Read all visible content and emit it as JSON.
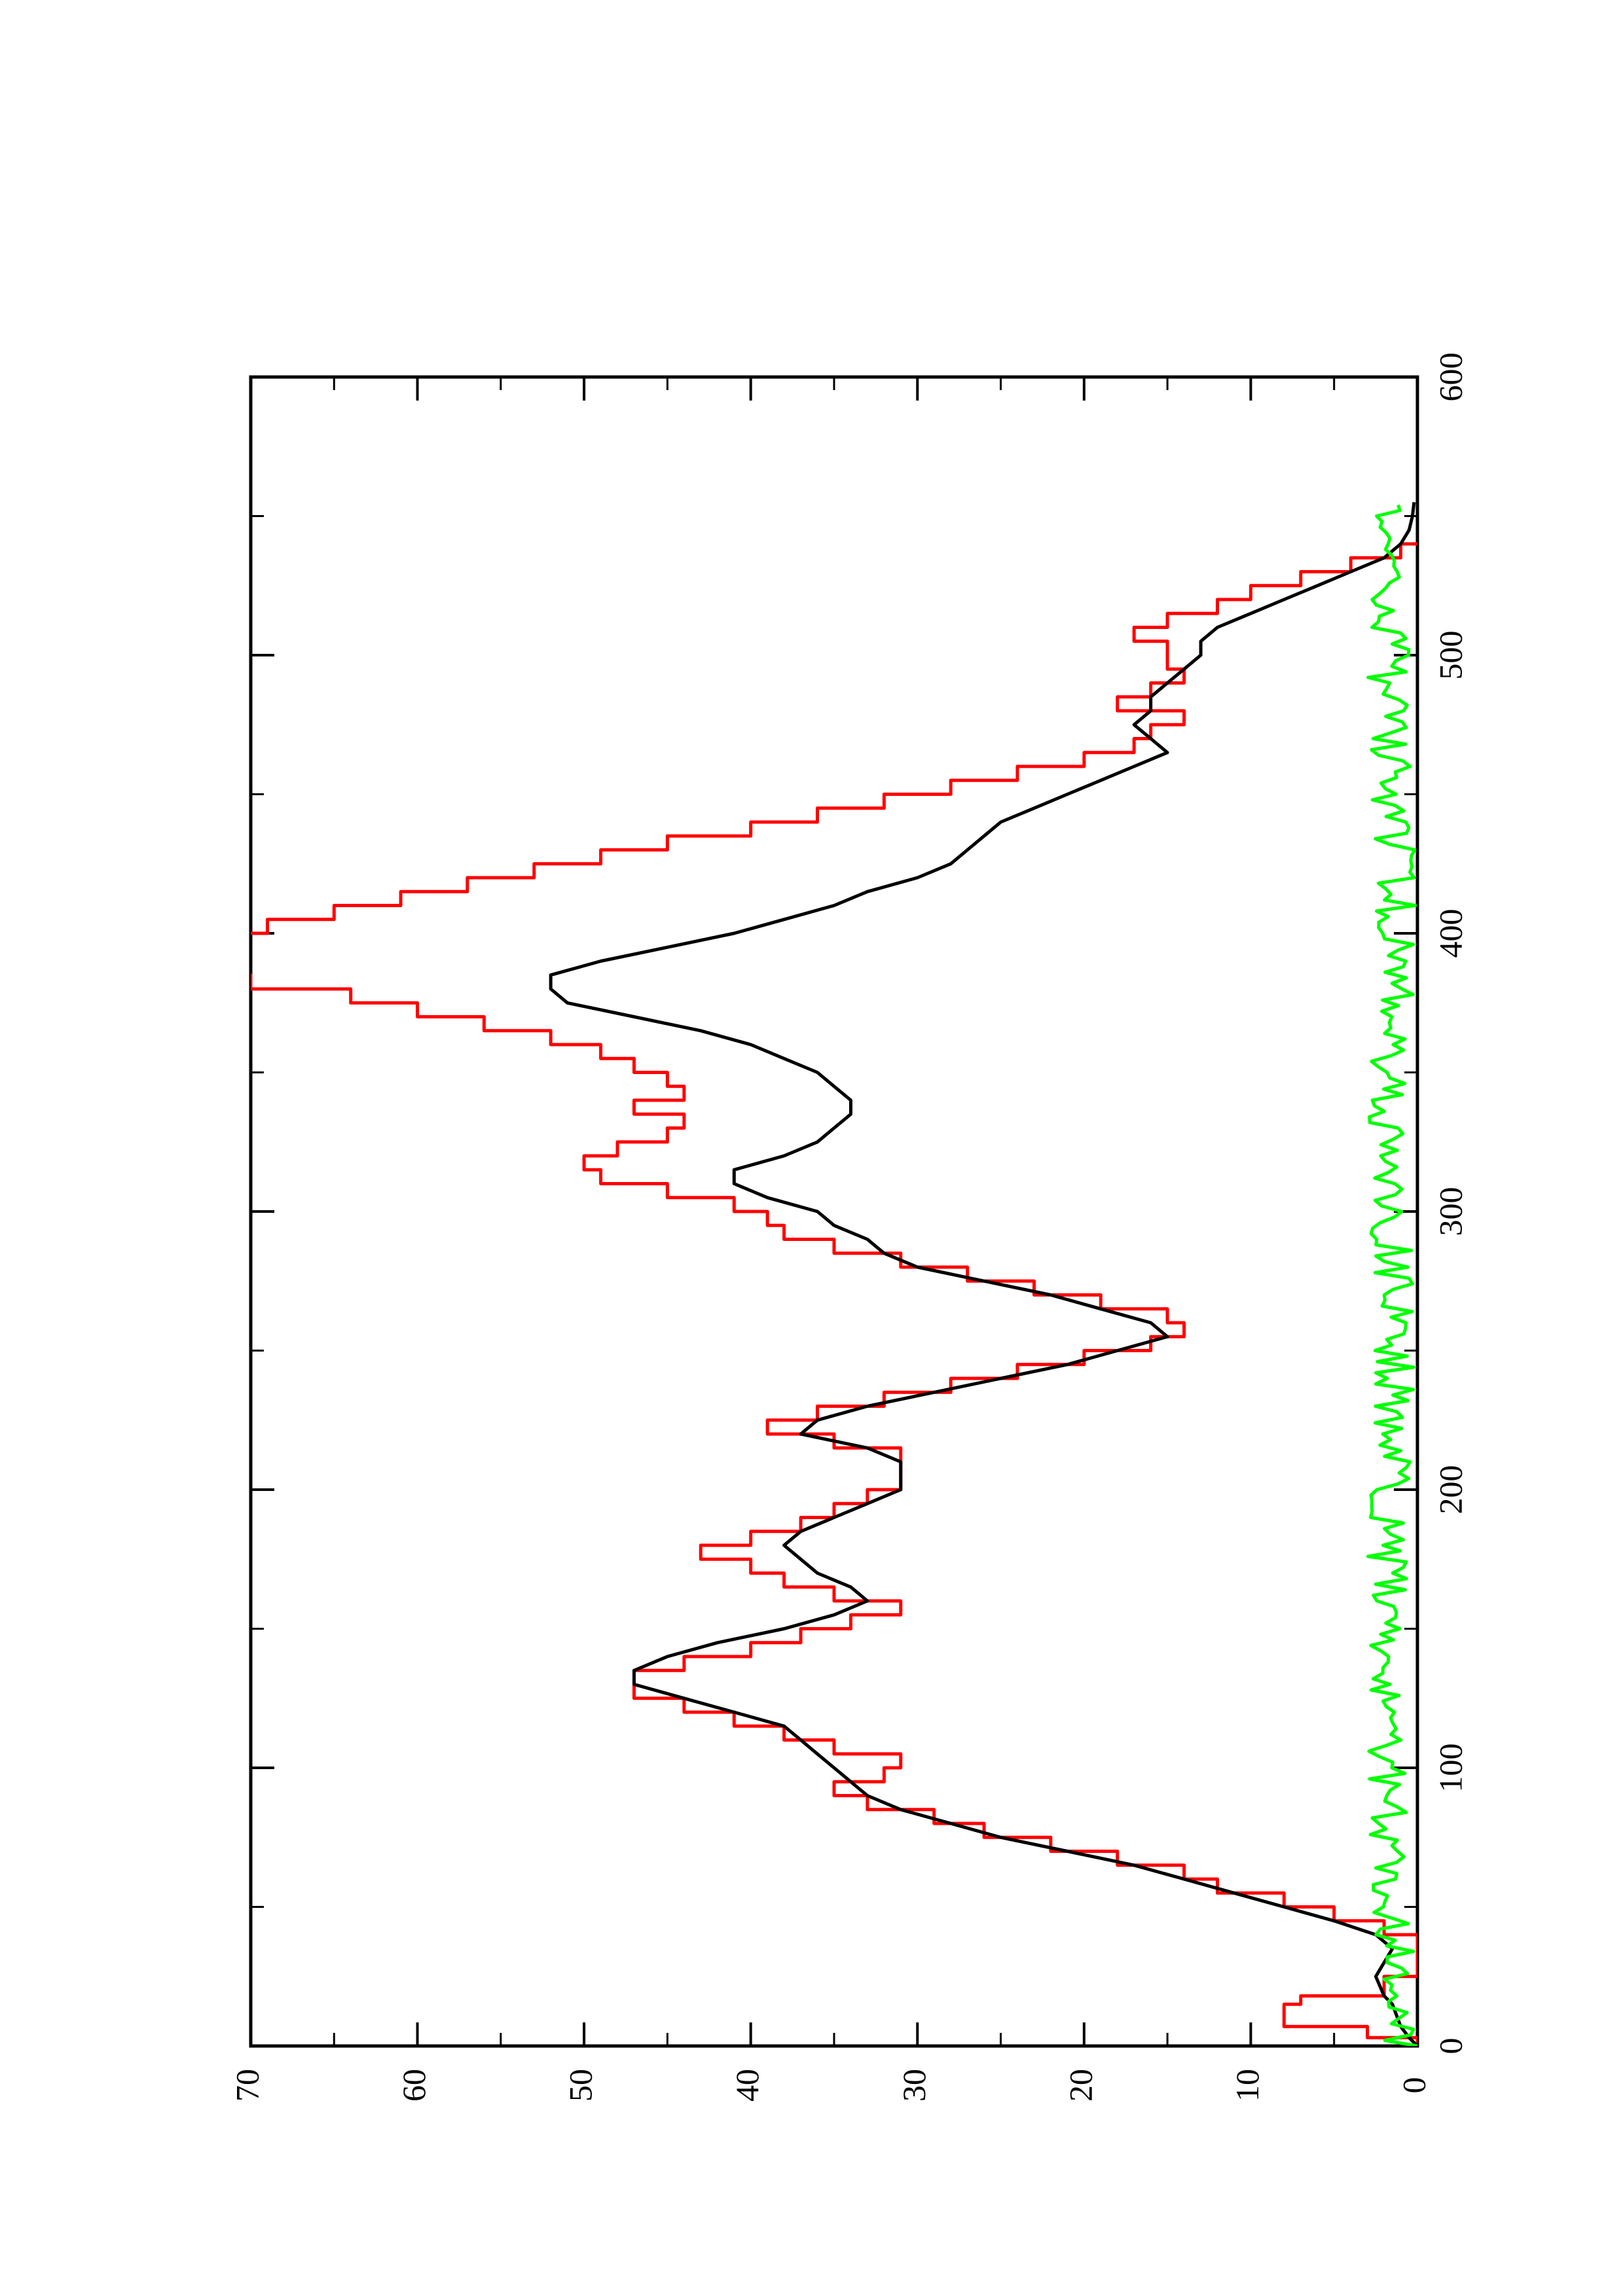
{
  "chart_data": {
    "type": "line",
    "title": "",
    "xlabel": "",
    "ylabel": "",
    "xlim": [
      0,
      600
    ],
    "ylim": [
      0,
      70
    ],
    "x_ticks": [
      0,
      100,
      200,
      300,
      400,
      500,
      600
    ],
    "x_minor_ticks": [
      50,
      150,
      250,
      350,
      450,
      550
    ],
    "y_ticks": [
      0,
      10,
      20,
      30,
      40,
      50,
      60,
      70
    ],
    "y_minor_ticks": [
      5,
      15,
      25,
      35,
      45,
      55,
      65
    ],
    "grid": false,
    "legend": "none",
    "orientation": "rotated-90-ccw",
    "series": [
      {
        "color": "#ff0000",
        "style": "step",
        "x": [
          0,
          3,
          7,
          15,
          18,
          25,
          30,
          35,
          40,
          45,
          50,
          55,
          60,
          65,
          70,
          75,
          80,
          85,
          90,
          95,
          100,
          105,
          110,
          115,
          120,
          125,
          130,
          135,
          140,
          145,
          150,
          155,
          160,
          165,
          170,
          175,
          180,
          185,
          190,
          195,
          200,
          205,
          210,
          215,
          220,
          225,
          230,
          235,
          240,
          245,
          250,
          255,
          260,
          265,
          270,
          275,
          280,
          285,
          290,
          295,
          300,
          305,
          310,
          315,
          320,
          325,
          330,
          335,
          340,
          345,
          350,
          355,
          360,
          365,
          370,
          375,
          380,
          385,
          390,
          395,
          400,
          405,
          410,
          415,
          420,
          425,
          430,
          435,
          440,
          445,
          450,
          455,
          460,
          465,
          470,
          475,
          480,
          485,
          490,
          495,
          500,
          505,
          510,
          515,
          520,
          525,
          530,
          535,
          540
        ],
        "y": [
          0,
          3,
          8,
          7,
          2,
          0,
          0,
          0,
          2,
          5,
          8,
          12,
          14,
          18,
          22,
          26,
          29,
          33,
          35,
          32,
          31,
          35,
          38,
          41,
          44,
          47,
          47,
          44,
          40,
          37,
          34,
          31,
          35,
          38,
          40,
          43,
          40,
          37,
          35,
          33,
          31,
          31,
          31,
          35,
          39,
          36,
          32,
          28,
          24,
          20,
          16,
          14,
          15,
          19,
          23,
          27,
          31,
          35,
          38,
          39,
          41,
          45,
          49,
          50,
          48,
          45,
          44,
          47,
          44,
          45,
          47,
          49,
          52,
          56,
          60,
          64,
          70,
          72,
          72,
          72,
          69,
          65,
          61,
          57,
          53,
          49,
          45,
          40,
          36,
          32,
          28,
          24,
          20,
          17,
          16,
          14,
          18,
          16,
          14,
          15,
          15,
          17,
          15,
          12,
          10,
          7,
          4,
          1,
          0
        ]
      },
      {
        "color": "#000000",
        "style": "line",
        "x": [
          0,
          3,
          7,
          15,
          18,
          25,
          30,
          35,
          40,
          45,
          50,
          55,
          60,
          65,
          70,
          75,
          80,
          85,
          90,
          95,
          100,
          105,
          110,
          115,
          120,
          125,
          130,
          135,
          140,
          145,
          150,
          155,
          160,
          165,
          170,
          175,
          180,
          185,
          190,
          195,
          200,
          205,
          210,
          215,
          220,
          225,
          230,
          235,
          240,
          245,
          250,
          255,
          260,
          265,
          270,
          275,
          280,
          285,
          290,
          295,
          300,
          305,
          310,
          315,
          320,
          325,
          330,
          335,
          340,
          345,
          350,
          355,
          360,
          365,
          370,
          375,
          380,
          385,
          390,
          395,
          400,
          405,
          410,
          415,
          420,
          425,
          430,
          435,
          440,
          445,
          450,
          455,
          460,
          465,
          470,
          475,
          480,
          485,
          490,
          495,
          500,
          505,
          510,
          515,
          520,
          525,
          530,
          535,
          540,
          545,
          550,
          555
        ],
        "y": [
          0,
          0.5,
          1,
          1.5,
          2,
          2.5,
          2,
          1.5,
          2.5,
          5,
          8,
          11,
          14,
          17,
          21,
          25,
          28,
          31,
          33,
          34,
          35,
          36,
          37,
          38,
          41,
          44,
          47,
          47,
          45,
          42,
          38,
          35,
          33,
          34,
          36,
          37,
          38,
          37,
          35,
          33,
          31,
          31,
          31,
          33,
          37,
          36,
          33,
          29,
          25,
          21,
          18,
          15,
          16,
          19,
          22,
          26,
          30,
          32,
          33,
          35,
          36,
          39,
          41,
          41,
          38,
          36,
          35,
          34,
          34,
          35,
          36,
          38,
          40,
          43,
          47,
          51,
          52,
          52,
          49,
          45,
          41,
          38,
          35,
          33,
          30,
          28,
          27,
          26,
          25,
          23,
          21,
          19,
          17,
          15,
          16,
          17,
          16,
          16,
          15,
          14,
          13,
          13,
          12,
          10,
          8,
          6,
          4,
          2,
          1,
          0.5,
          0.3,
          0.2
        ]
      },
      {
        "color": "#00ff00",
        "style": "line",
        "noise_amplitude": 2.5,
        "x": [
          0,
          50,
          100,
          150,
          200,
          250,
          300,
          350,
          400,
          450,
          500,
          555
        ],
        "y": [
          0.5,
          1.2,
          1.5,
          1.3,
          1.4,
          1.0,
          1.2,
          1.3,
          0.9,
          1.1,
          1.4,
          0.8
        ]
      }
    ]
  }
}
